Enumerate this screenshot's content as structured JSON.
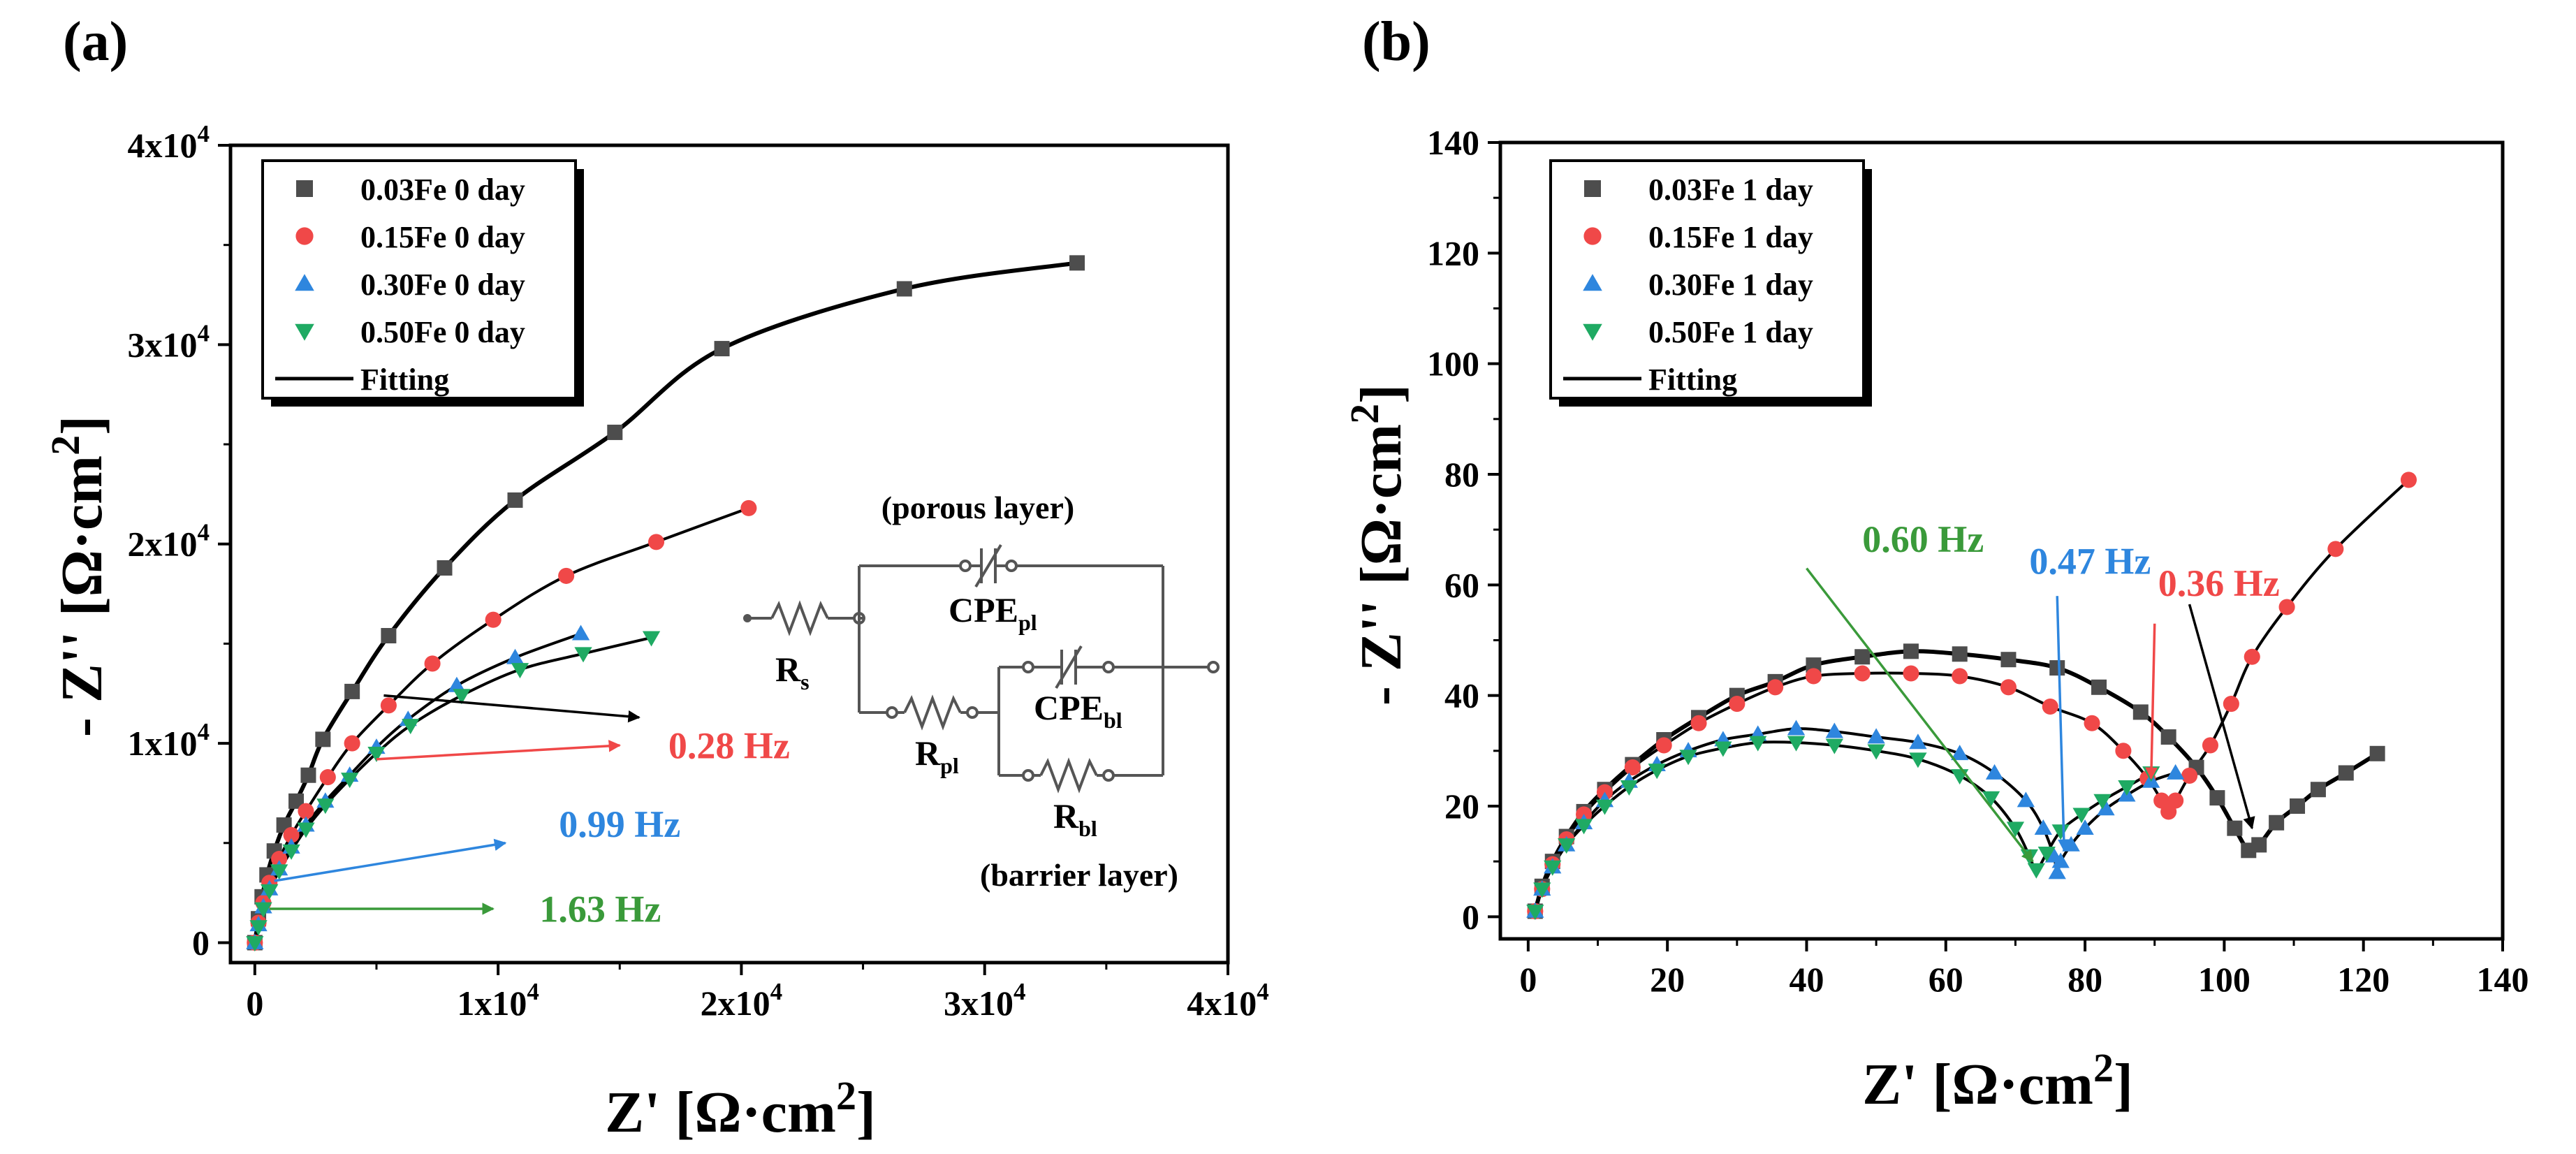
{
  "chart_data": [
    {
      "type": "scatter",
      "panel_label": "(a)",
      "xlabel_main": "Z' [Ω·cm",
      "xlabel_sup": "2",
      "xlabel_end": "]",
      "ylabel_main": "- Z'' [Ω·cm",
      "ylabel_sup": "2",
      "ylabel_end": "]",
      "xlim": [
        -1000,
        40000
      ],
      "ylim": [
        -1000,
        40000
      ],
      "xticks": [
        {
          "v": 0,
          "label": "0"
        },
        {
          "v": 10000,
          "label": "1x10",
          "exp": "4"
        },
        {
          "v": 20000,
          "label": "2x10",
          "exp": "4"
        },
        {
          "v": 30000,
          "label": "3x10",
          "exp": "4"
        },
        {
          "v": 40000,
          "label": "4x10",
          "exp": "4"
        }
      ],
      "yticks": [
        {
          "v": 0,
          "label": "0"
        },
        {
          "v": 10000,
          "label": "1x10",
          "exp": "4"
        },
        {
          "v": 20000,
          "label": "2x10",
          "exp": "4"
        },
        {
          "v": 30000,
          "label": "3x10",
          "exp": "4"
        },
        {
          "v": 40000,
          "label": "4x10",
          "exp": "4"
        }
      ],
      "legend": [
        {
          "label": "0.03Fe 0 day",
          "color": "#4d4d4d",
          "marker": "square"
        },
        {
          "label": "0.15Fe 0 day",
          "color": "#f04848",
          "marker": "circle"
        },
        {
          "label": "0.30Fe 0 day",
          "color": "#2e86de",
          "marker": "triangle-up"
        },
        {
          "label": "0.50Fe 0 day",
          "color": "#1faa63",
          "marker": "triangle-down"
        },
        {
          "label": "Fitting",
          "color": "#000000",
          "marker": "line"
        }
      ],
      "series": [
        {
          "name": "0.03Fe 0 day",
          "color": "#4d4d4d",
          "marker": "square",
          "x": [
            0,
            150,
            300,
            500,
            800,
            1200,
            1700,
            2200,
            2800,
            4000,
            5500,
            7800,
            10700,
            14800,
            19200,
            26700,
            33800
          ],
          "y": [
            0,
            1200,
            2300,
            3400,
            4600,
            5900,
            7100,
            8400,
            10200,
            12600,
            15400,
            18800,
            22200,
            25600,
            29800,
            32800,
            34100
          ]
        },
        {
          "name": "0.15Fe 0 day",
          "color": "#f04848",
          "marker": "circle",
          "x": [
            0,
            150,
            350,
            600,
            1000,
            1500,
            2100,
            3000,
            4000,
            5500,
            7300,
            9800,
            12800,
            16500,
            20300
          ],
          "y": [
            0,
            1000,
            2000,
            3000,
            4200,
            5400,
            6600,
            8300,
            10000,
            11900,
            14000,
            16200,
            18400,
            20100,
            21800
          ]
        },
        {
          "name": "0.30Fe 0 day",
          "color": "#2e86de",
          "marker": "triangle-up",
          "x": [
            0,
            150,
            350,
            600,
            1000,
            1500,
            2100,
            2900,
            3900,
            5000,
            6300,
            8300,
            10700,
            13400
          ],
          "y": [
            0,
            900,
            1800,
            2700,
            3700,
            4800,
            5900,
            7100,
            8400,
            9800,
            11200,
            12900,
            14300,
            15500
          ]
        },
        {
          "name": "0.50Fe 0 day",
          "color": "#1faa63",
          "marker": "triangle-down",
          "x": [
            0,
            150,
            350,
            600,
            1000,
            1500,
            2100,
            2900,
            3900,
            5000,
            6400,
            8500,
            10900,
            13500,
            16300
          ],
          "y": [
            0,
            800,
            1700,
            2600,
            3600,
            4600,
            5700,
            6900,
            8200,
            9500,
            10900,
            12400,
            13700,
            14500,
            15300
          ]
        }
      ],
      "annotations": [
        {
          "text": "0.28 Hz",
          "color": "#f04848",
          "x": 10000,
          "y": 9800
        },
        {
          "text": "0.99 Hz",
          "color": "#2e86de",
          "x": 11400,
          "y": 5700
        },
        {
          "text": "1.63 Hz",
          "color": "#3a9a3a",
          "x": 10700,
          "y": 1600
        }
      ],
      "circuit": {
        "top_label": "(porous layer)",
        "bottom_label": "(barrier layer)",
        "rs": "R",
        "rs_sub": "s",
        "rpl": "R",
        "rpl_sub": "pl",
        "cpepl": "CPE",
        "cpepl_sub": "pl",
        "cpebl": "CPE",
        "cpebl_sub": "bl",
        "rbl": "R",
        "rbl_sub": "bl"
      }
    },
    {
      "type": "scatter",
      "panel_label": "(b)",
      "xlabel_main": "Z' [Ω·cm",
      "xlabel_sup": "2",
      "xlabel_end": "]",
      "ylabel_main": "- Z'' [Ω·cm",
      "ylabel_sup": "2",
      "ylabel_end": "]",
      "xlim": [
        -4,
        140
      ],
      "ylim": [
        -4,
        140
      ],
      "xticks": [
        {
          "v": 0,
          "label": "0"
        },
        {
          "v": 20,
          "label": "20"
        },
        {
          "v": 40,
          "label": "40"
        },
        {
          "v": 60,
          "label": "60"
        },
        {
          "v": 80,
          "label": "80"
        },
        {
          "v": 100,
          "label": "100"
        },
        {
          "v": 120,
          "label": "120"
        },
        {
          "v": 140,
          "label": "140"
        }
      ],
      "yticks": [
        {
          "v": 0,
          "label": "0"
        },
        {
          "v": 20,
          "label": "20"
        },
        {
          "v": 40,
          "label": "40"
        },
        {
          "v": 60,
          "label": "60"
        },
        {
          "v": 80,
          "label": "80"
        },
        {
          "v": 100,
          "label": "100"
        },
        {
          "v": 120,
          "label": "120"
        },
        {
          "v": 140,
          "label": "140"
        }
      ],
      "legend": [
        {
          "label": "0.03Fe 1 day",
          "color": "#4d4d4d",
          "marker": "square"
        },
        {
          "label": "0.15Fe 1 day",
          "color": "#f04848",
          "marker": "circle"
        },
        {
          "label": "0.30Fe 1 day",
          "color": "#2e86de",
          "marker": "triangle-up"
        },
        {
          "label": "0.50Fe 1 day",
          "color": "#1faa63",
          "marker": "triangle-down"
        },
        {
          "label": "Fitting",
          "color": "#000000",
          "marker": "line"
        }
      ],
      "series": [
        {
          "name": "0.03Fe 1 day",
          "color": "#4d4d4d",
          "marker": "square",
          "x": [
            1,
            2,
            3.5,
            5.5,
            8,
            11,
            15,
            19.5,
            24.5,
            30,
            35.5,
            41,
            48,
            55,
            62,
            69,
            76,
            82,
            88,
            92,
            96,
            99,
            101.5,
            103.5,
            105,
            107.5,
            110.5,
            113.5,
            117.5,
            122
          ],
          "y": [
            1,
            5.5,
            10,
            14.5,
            19,
            23,
            27.5,
            32,
            36,
            40,
            42.5,
            45.5,
            47,
            48,
            47.5,
            46.5,
            45,
            41.5,
            37,
            32.5,
            27,
            21.5,
            16,
            12,
            13,
            17,
            20,
            23,
            26,
            29.5
          ]
        },
        {
          "name": "0.15Fe 1 day",
          "color": "#f04848",
          "marker": "circle",
          "x": [
            1,
            2,
            3.5,
            5.5,
            8,
            11,
            15,
            19.5,
            24.5,
            30,
            35.5,
            41,
            48,
            55,
            62,
            69,
            75,
            81,
            85.5,
            89,
            91,
            92,
            93,
            95,
            98,
            101,
            104,
            109,
            116,
            126.5
          ],
          "y": [
            1,
            5,
            9.5,
            14,
            18.5,
            22.5,
            27,
            31,
            35,
            38.5,
            41.5,
            43.5,
            44,
            44,
            43.5,
            41.5,
            38,
            35,
            30,
            25,
            21,
            19,
            21,
            25.5,
            31,
            38.5,
            47,
            56,
            66.5,
            79
          ]
        },
        {
          "name": "0.30Fe 1 day",
          "color": "#2e86de",
          "marker": "triangle-up",
          "x": [
            1,
            2,
            3.5,
            5.5,
            8,
            11,
            14.5,
            18.5,
            23,
            28,
            33,
            38.5,
            44,
            50,
            56,
            62,
            67,
            71.5,
            74,
            75.5,
            76,
            76.5,
            78,
            80,
            83,
            86,
            89.5,
            93
          ],
          "y": [
            1,
            5,
            9,
            13,
            17,
            21,
            24.5,
            27.5,
            30,
            32,
            33,
            34,
            33.5,
            32.5,
            31.5,
            29.5,
            26,
            21,
            16,
            11,
            8,
            10,
            13,
            16,
            19.5,
            22,
            24.5,
            26
          ]
        },
        {
          "name": "0.50Fe 1 day",
          "color": "#1faa63",
          "marker": "triangle-down",
          "x": [
            1,
            2,
            3.5,
            5.5,
            8,
            11,
            14.5,
            18.5,
            23,
            28,
            33,
            38.5,
            44,
            50,
            56,
            62,
            66.5,
            70,
            72,
            73,
            74.5,
            76.5,
            79.5,
            82.5,
            86,
            89.5
          ],
          "y": [
            1,
            5,
            9,
            13,
            16.5,
            20,
            23.5,
            26.5,
            29,
            30.5,
            31.5,
            31.5,
            31,
            30,
            28.5,
            25.5,
            21.5,
            16,
            11,
            8.5,
            11.5,
            15.5,
            18.5,
            21,
            23.5,
            26
          ]
        }
      ],
      "annotations": [
        {
          "text": "0.60 Hz",
          "color": "#3a9a3a",
          "x": 48,
          "y": 68
        },
        {
          "text": "0.47 Hz",
          "color": "#2e86de",
          "x": 72.5,
          "y": 64
        },
        {
          "text": "0.36 Hz",
          "color": "#f04848",
          "x": 89.5,
          "y": 60.5
        }
      ]
    }
  ]
}
